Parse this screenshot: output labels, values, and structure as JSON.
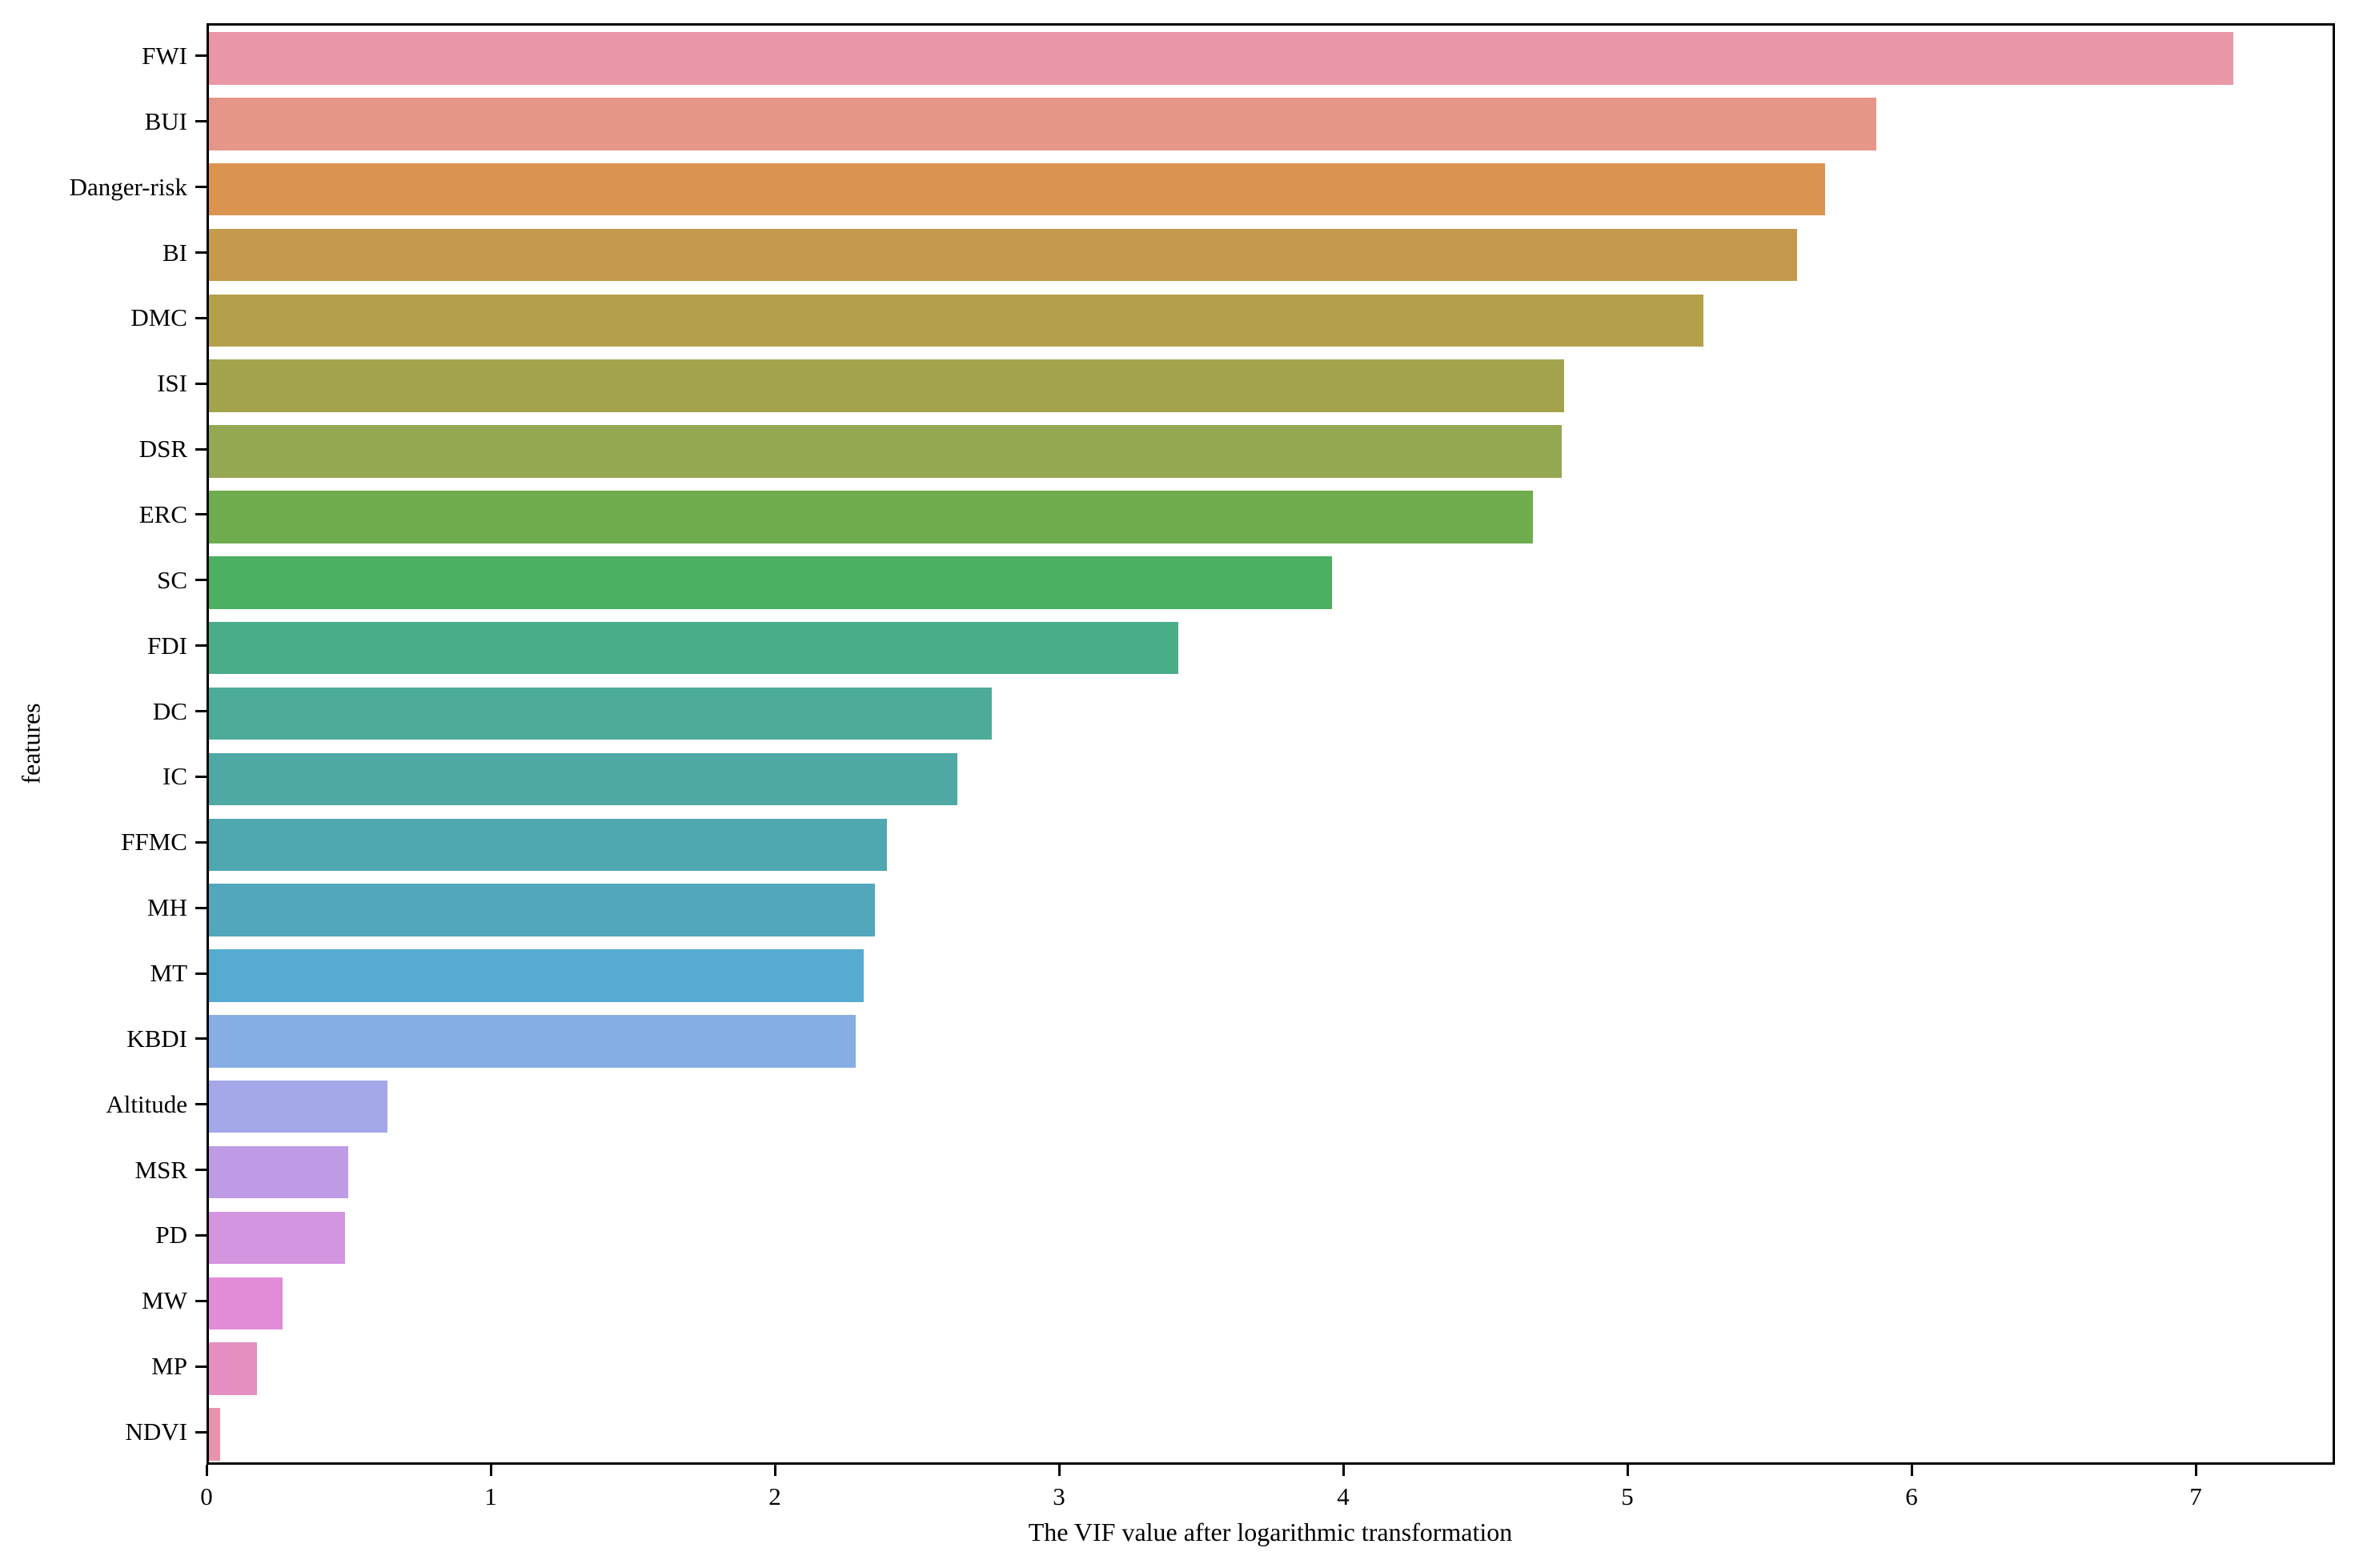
{
  "figure": {
    "background": "#ffffff",
    "axis_color": "#000000"
  },
  "chart_data": {
    "type": "bar",
    "orientation": "horizontal",
    "title": "",
    "xlabel": "The VIF value after logarithmic transformation",
    "ylabel": "features",
    "xlim": [
      0,
      7.49
    ],
    "x_ticks": [
      0,
      1,
      2,
      3,
      4,
      5,
      6,
      7
    ],
    "grid": false,
    "legend": "none",
    "categories": [
      "FWI",
      "BUI",
      "Danger-risk",
      "BI",
      "DMC",
      "ISI",
      "DSR",
      "ERC",
      "SC",
      "FDI",
      "DC",
      "IC",
      "FFMC",
      "MH",
      "MT",
      "KBDI",
      "Altitude",
      "MSR",
      "PD",
      "MW",
      "MP",
      "NDVI"
    ],
    "values": [
      7.14,
      5.88,
      5.7,
      5.6,
      5.27,
      4.78,
      4.77,
      4.67,
      3.96,
      3.42,
      2.76,
      2.64,
      2.39,
      2.35,
      2.31,
      2.28,
      0.63,
      0.49,
      0.48,
      0.26,
      0.17,
      0.04
    ],
    "bar_colors": [
      "#E997A6",
      "#E69688",
      "#DB944F",
      "#C59A4D",
      "#B2A04B",
      "#A2A34C",
      "#94A751",
      "#6FAC4D",
      "#4BB061",
      "#49AD88",
      "#4CAC99",
      "#4EA9A5",
      "#4FA8AF",
      "#52A7BC",
      "#55ABD2",
      "#85AFE4",
      "#A4A7E8",
      "#BE9BE4",
      "#D394E0",
      "#E28CD9",
      "#E48FC0",
      "#E893AC"
    ]
  }
}
